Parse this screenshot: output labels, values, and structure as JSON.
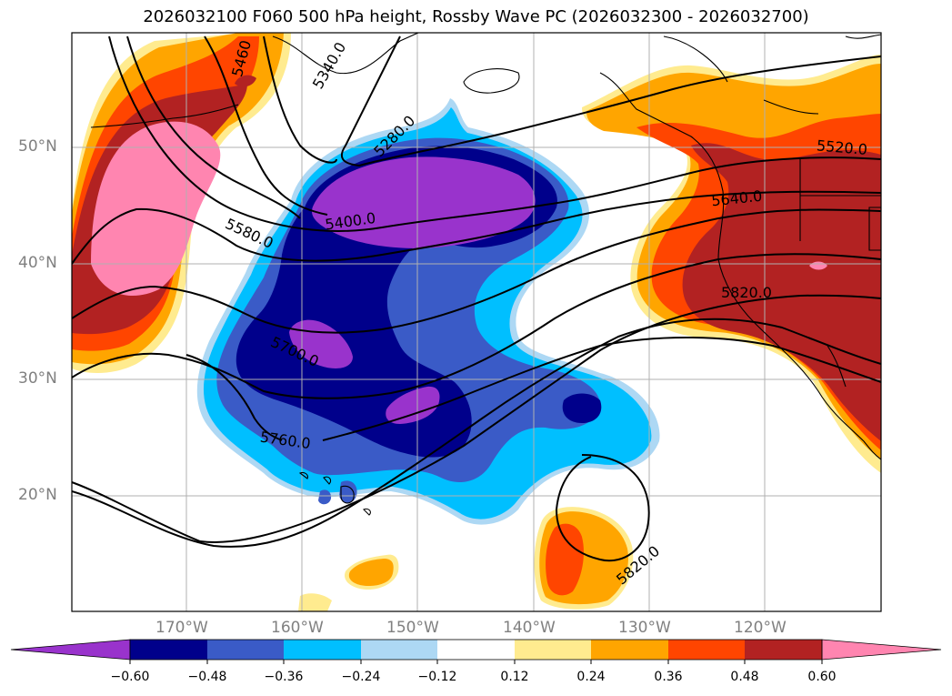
{
  "title": "2026032100 F060 500 hPa height, Rossby Wave PC (2026032300 - 2026032700)",
  "axes": {
    "lat_labels": [
      "50°N",
      "40°N",
      "30°N",
      "20°N"
    ],
    "lon_labels": [
      "170°W",
      "160°W",
      "150°W",
      "140°W",
      "130°W",
      "120°W"
    ]
  },
  "contour_labels": [
    "5460",
    "5340.0",
    "5280.0",
    "5520.0",
    "5400.0",
    "5640.0",
    "5580.0",
    "5820.0",
    "5700.0",
    "5760.0",
    "5820.0"
  ],
  "colorbar": {
    "tick_labels": [
      "−0.60",
      "−0.48",
      "−0.36",
      "−0.24",
      "−0.12",
      "0.12",
      "0.24",
      "0.36",
      "0.48",
      "0.60"
    ],
    "colors": [
      "#9933cc",
      "#00008b",
      "#3a5bc7",
      "#00bfff",
      "#add8f4",
      "#ffffff",
      "#ffeb8f",
      "#ffa500",
      "#ff4500",
      "#b22222",
      "#ff85b0"
    ]
  },
  "map_style": {
    "grid": true,
    "coastline_color": "#000000",
    "contour_color": "#000000"
  }
}
